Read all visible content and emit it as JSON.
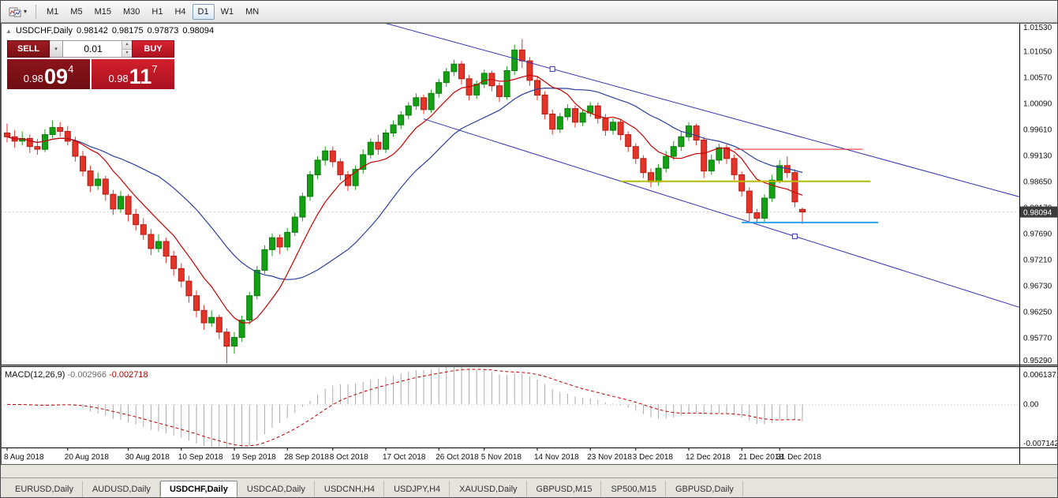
{
  "icons": {
    "caret_down": "▾",
    "spin_up": "▴",
    "spin_down": "▾",
    "collapse": "▲"
  },
  "toolbar": {
    "timeframes": [
      {
        "label": "M1",
        "active": false
      },
      {
        "label": "M5",
        "active": false
      },
      {
        "label": "M15",
        "active": false
      },
      {
        "label": "M30",
        "active": false
      },
      {
        "label": "H1",
        "active": false
      },
      {
        "label": "H4",
        "active": false
      },
      {
        "label": "D1",
        "active": true
      },
      {
        "label": "W1",
        "active": false
      },
      {
        "label": "MN",
        "active": false
      }
    ]
  },
  "chart": {
    "symbol_header": {
      "title": "USDCHF,Daily",
      "open": "0.98142",
      "high": "0.98175",
      "low": "0.97873",
      "close": "0.98094"
    },
    "trade_panel": {
      "sell_label": "SELL",
      "buy_label": "BUY",
      "volume": "0.01",
      "sell_price": {
        "big_figure": "0.98",
        "pips": "09",
        "pip_fraction": "4"
      },
      "buy_price": {
        "big_figure": "0.98",
        "pips": "11",
        "pip_fraction": "7"
      }
    },
    "price_axis": {
      "labels": [
        "1.01530",
        "1.01050",
        "1.00570",
        "1.00090",
        "0.99610",
        "0.99130",
        "0.98650",
        "0.98170",
        "0.97690",
        "0.97210",
        "0.96730",
        "0.96250",
        "0.95770",
        "0.95290"
      ],
      "current_price": "0.98094"
    },
    "time_axis": {
      "labels": [
        {
          "text": "8 Aug 2018",
          "i": 0
        },
        {
          "text": "20 Aug 2018",
          "i": 8
        },
        {
          "text": "30 Aug 2018",
          "i": 16
        },
        {
          "text": "10 Sep 2018",
          "i": 23
        },
        {
          "text": "19 Sep 2018",
          "i": 30
        },
        {
          "text": "28 Sep 2018",
          "i": 37
        },
        {
          "text": "8 Oct 2018",
          "i": 43
        },
        {
          "text": "17 Oct 2018",
          "i": 50
        },
        {
          "text": "26 Oct 2018",
          "i": 57
        },
        {
          "text": "5 Nov 2018",
          "i": 63
        },
        {
          "text": "14 Nov 2018",
          "i": 70
        },
        {
          "text": "23 Nov 2018",
          "i": 77
        },
        {
          "text": "3 Dec 2018",
          "i": 83
        },
        {
          "text": "12 Dec 2018",
          "i": 90
        },
        {
          "text": "21 Dec 2018",
          "i": 97
        },
        {
          "text": "31 Dec 2018",
          "i": 102
        }
      ]
    }
  },
  "macd": {
    "label": "MACD(12,26,9)",
    "value": "-0.002966",
    "signal": "-0.002718",
    "axis_labels": [
      "0.006137",
      "0.00",
      "-0.007142"
    ]
  },
  "tabs": [
    {
      "label": "EURUSD,Daily",
      "active": false
    },
    {
      "label": "AUDUSD,Daily",
      "active": false
    },
    {
      "label": "USDCHF,Daily",
      "active": true
    },
    {
      "label": "USDCAD,Daily",
      "active": false
    },
    {
      "label": "USDCNH,H4",
      "active": false
    },
    {
      "label": "USDJPY,H4",
      "active": false
    },
    {
      "label": "XAUUSD,Daily",
      "active": false
    },
    {
      "label": "GBPUSD,M15",
      "active": false
    },
    {
      "label": "SP500,M15",
      "active": false
    },
    {
      "label": "GBPUSD,Daily",
      "active": false
    }
  ],
  "chart_data": {
    "type": "candlestick",
    "symbol": "USDCHF",
    "timeframe": "Daily",
    "price_range": [
      0.9528,
      1.0158
    ],
    "macd_range": [
      -0.007142,
      0.006137
    ],
    "colors": {
      "up": "#14a014",
      "up_border": "#0a7a0a",
      "down": "#e3342a",
      "down_border": "#b51d14",
      "ma_fast": "#cc0000",
      "ma_slow": "#2b3f9e",
      "trend": "#3333b8",
      "badge_bg": "#3c3c3c",
      "macd_hist": "#aaaaaa",
      "macd_signal": "#c00000"
    },
    "overlays": {
      "ma_fast_period": 8,
      "ma_slow_period": 21,
      "trendlines": [
        {
          "i1": 49,
          "p1": 1.0161,
          "i2": 139,
          "p2": 0.9817,
          "handle_i": 72
        },
        {
          "i1": 55,
          "p1": 0.9981,
          "i2": 139,
          "p2": 0.961,
          "handle_i": 104
        }
      ],
      "hlines": [
        {
          "p": 0.9925,
          "i1": 96,
          "i2": 113,
          "color": "#ff2626",
          "w": 1
        },
        {
          "p": 0.9866,
          "i1": 81,
          "i2": 114,
          "color": "#b7bd00",
          "w": 2
        },
        {
          "p": 0.979,
          "i1": 97,
          "i2": 115,
          "color": "#2aa0e8",
          "w": 2
        }
      ]
    },
    "candles": [
      [
        0.9955,
        0.9972,
        0.9938,
        0.9948
      ],
      [
        0.9948,
        0.996,
        0.9928,
        0.994
      ],
      [
        0.994,
        0.9958,
        0.9932,
        0.9945
      ],
      [
        0.9945,
        0.9952,
        0.9918,
        0.993
      ],
      [
        0.993,
        0.9944,
        0.9915,
        0.9925
      ],
      [
        0.9925,
        0.9962,
        0.992,
        0.9952
      ],
      [
        0.9952,
        0.9978,
        0.9946,
        0.9965
      ],
      [
        0.9965,
        0.9975,
        0.9948,
        0.9958
      ],
      [
        0.9958,
        0.9968,
        0.9932,
        0.994
      ],
      [
        0.994,
        0.9948,
        0.9902,
        0.9912
      ],
      [
        0.9912,
        0.9922,
        0.9875,
        0.9885
      ],
      [
        0.9885,
        0.9895,
        0.9846,
        0.9858
      ],
      [
        0.9858,
        0.9882,
        0.985,
        0.987
      ],
      [
        0.987,
        0.9876,
        0.983,
        0.9842
      ],
      [
        0.9842,
        0.985,
        0.9804,
        0.9815
      ],
      [
        0.9815,
        0.9848,
        0.9808,
        0.9838
      ],
      [
        0.9838,
        0.9842,
        0.9792,
        0.9805
      ],
      [
        0.9805,
        0.9815,
        0.9775,
        0.9786
      ],
      [
        0.9786,
        0.9798,
        0.9758,
        0.9768
      ],
      [
        0.9768,
        0.9778,
        0.973,
        0.9742
      ],
      [
        0.9742,
        0.9768,
        0.9735,
        0.9755
      ],
      [
        0.9755,
        0.9762,
        0.9715,
        0.9728
      ],
      [
        0.9728,
        0.9738,
        0.9692,
        0.9705
      ],
      [
        0.9705,
        0.9715,
        0.967,
        0.9682
      ],
      [
        0.9682,
        0.9692,
        0.9642,
        0.9655
      ],
      [
        0.9655,
        0.9665,
        0.9615,
        0.9628
      ],
      [
        0.9628,
        0.9638,
        0.9592,
        0.9605
      ],
      [
        0.9605,
        0.9628,
        0.9598,
        0.9615
      ],
      [
        0.9615,
        0.962,
        0.9575,
        0.9588
      ],
      [
        0.9588,
        0.9595,
        0.953,
        0.9562
      ],
      [
        0.9562,
        0.9588,
        0.9548,
        0.9578
      ],
      [
        0.9578,
        0.9618,
        0.957,
        0.961
      ],
      [
        0.961,
        0.9662,
        0.9602,
        0.9655
      ],
      [
        0.9655,
        0.971,
        0.9648,
        0.9702
      ],
      [
        0.9702,
        0.9748,
        0.9695,
        0.974
      ],
      [
        0.974,
        0.977,
        0.9728,
        0.9762
      ],
      [
        0.9762,
        0.9768,
        0.9732,
        0.9745
      ],
      [
        0.9745,
        0.978,
        0.9738,
        0.9772
      ],
      [
        0.9772,
        0.9808,
        0.9765,
        0.98
      ],
      [
        0.98,
        0.9845,
        0.9792,
        0.9838
      ],
      [
        0.9838,
        0.9885,
        0.983,
        0.9878
      ],
      [
        0.9878,
        0.9912,
        0.987,
        0.9905
      ],
      [
        0.9905,
        0.993,
        0.9895,
        0.9922
      ],
      [
        0.9922,
        0.993,
        0.9892,
        0.9902
      ],
      [
        0.9902,
        0.9908,
        0.9868,
        0.9878
      ],
      [
        0.9878,
        0.9885,
        0.9848,
        0.9858
      ],
      [
        0.9858,
        0.9895,
        0.985,
        0.9888
      ],
      [
        0.9888,
        0.9925,
        0.988,
        0.9915
      ],
      [
        0.9915,
        0.9945,
        0.9908,
        0.9938
      ],
      [
        0.9938,
        0.9952,
        0.9915,
        0.9925
      ],
      [
        0.9925,
        0.9962,
        0.9918,
        0.9955
      ],
      [
        0.9955,
        0.9978,
        0.9948,
        0.997
      ],
      [
        0.997,
        0.9995,
        0.9962,
        0.9988
      ],
      [
        0.9988,
        1.0012,
        0.998,
        1.0005
      ],
      [
        1.0005,
        1.0028,
        0.9998,
        1.002
      ],
      [
        1.002,
        1.0026,
        0.999,
        0.9998
      ],
      [
        0.9998,
        1.0035,
        0.9992,
        1.0028
      ],
      [
        1.0028,
        1.0055,
        1.002,
        1.0048
      ],
      [
        1.0048,
        1.0075,
        1.004,
        1.0068
      ],
      [
        1.0068,
        1.009,
        1.006,
        1.0082
      ],
      [
        1.0082,
        1.0088,
        1.0045,
        1.0055
      ],
      [
        1.0055,
        1.0062,
        1.0015,
        1.0025
      ],
      [
        1.0025,
        1.0052,
        1.0018,
        1.0045
      ],
      [
        1.0045,
        1.0072,
        1.0038,
        1.0065
      ],
      [
        1.0065,
        1.007,
        1.0032,
        1.0042
      ],
      [
        1.0042,
        1.0048,
        1.0012,
        1.0022
      ],
      [
        1.0022,
        1.0078,
        1.0016,
        1.007
      ],
      [
        1.007,
        1.0118,
        1.0062,
        1.0108
      ],
      [
        1.0108,
        1.0128,
        1.0075,
        1.0088
      ],
      [
        1.0088,
        1.0095,
        1.0042,
        1.0052
      ],
      [
        1.0052,
        1.006,
        1.0015,
        1.0025
      ],
      [
        1.0025,
        1.0032,
        0.998,
        0.999
      ],
      [
        0.999,
        0.9998,
        0.9952,
        0.9962
      ],
      [
        0.9962,
        0.9992,
        0.9955,
        0.9985
      ],
      [
        0.9985,
        1.0008,
        0.9978,
        1.0
      ],
      [
        1.0,
        1.0006,
        0.9965,
        0.9975
      ],
      [
        0.9975,
        0.9999,
        0.9968,
        0.9992
      ],
      [
        0.9992,
        1.0012,
        0.9985,
        1.0005
      ],
      [
        1.0005,
        1.0011,
        0.9972,
        0.9982
      ],
      [
        0.9982,
        0.999,
        0.995,
        0.996
      ],
      [
        0.996,
        0.9982,
        0.9952,
        0.9975
      ],
      [
        0.9975,
        0.9981,
        0.9942,
        0.9952
      ],
      [
        0.9952,
        0.9958,
        0.992,
        0.993
      ],
      [
        0.993,
        0.9936,
        0.9898,
        0.9908
      ],
      [
        0.9908,
        0.9914,
        0.9872,
        0.9882
      ],
      [
        0.9882,
        0.989,
        0.9855,
        0.9865
      ],
      [
        0.9865,
        0.9898,
        0.9858,
        0.989
      ],
      [
        0.989,
        0.9922,
        0.9882,
        0.9912
      ],
      [
        0.9912,
        0.994,
        0.9905,
        0.993
      ],
      [
        0.993,
        0.9958,
        0.9922,
        0.9948
      ],
      [
        0.9948,
        0.9975,
        0.994,
        0.9968
      ],
      [
        0.9968,
        0.9972,
        0.9932,
        0.9942
      ],
      [
        0.9942,
        0.9948,
        0.9872,
        0.9885
      ],
      [
        0.9885,
        0.9915,
        0.9878,
        0.9905
      ],
      [
        0.9905,
        0.9935,
        0.9898,
        0.9928
      ],
      [
        0.9928,
        0.9934,
        0.9898,
        0.9908
      ],
      [
        0.9908,
        0.9915,
        0.9868,
        0.9878
      ],
      [
        0.9878,
        0.9884,
        0.9838,
        0.9848
      ],
      [
        0.9848,
        0.9855,
        0.9792,
        0.9808
      ],
      [
        0.9808,
        0.9815,
        0.9788,
        0.9798
      ],
      [
        0.9798,
        0.9842,
        0.9792,
        0.9835
      ],
      [
        0.9835,
        0.9878,
        0.9828,
        0.9868
      ],
      [
        0.9868,
        0.9905,
        0.9862,
        0.9895
      ],
      [
        0.9895,
        0.9912,
        0.9872,
        0.9882
      ],
      [
        0.9882,
        0.9888,
        0.9818,
        0.9828
      ],
      [
        0.98142,
        0.98175,
        0.97873,
        0.98094
      ]
    ]
  }
}
